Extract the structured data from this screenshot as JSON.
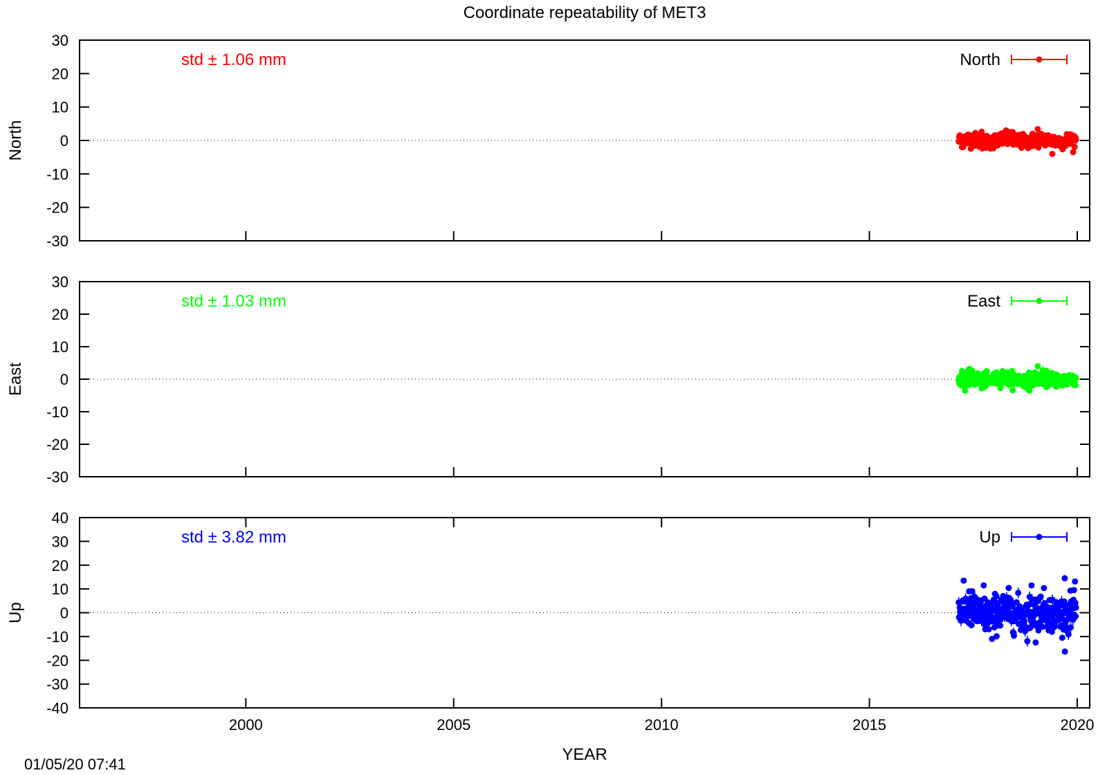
{
  "chart_data": {
    "type": "scatter",
    "title": "Coordinate repeatability of MET3",
    "xlabel": "YEAR",
    "xlim": [
      1996,
      2020.3
    ],
    "xticks": [
      2000,
      2005,
      2010,
      2015,
      2020
    ],
    "timestamp": "01/05/20 07:41",
    "panels": [
      {
        "name": "North",
        "ylabel": "North",
        "color": "#ff0000",
        "ylim": [
          -30,
          30
        ],
        "yticks": [
          -30,
          -20,
          -10,
          0,
          10,
          20,
          30
        ],
        "std_text": "std ± 1.06 mm",
        "legend": "North",
        "series": {
          "x_start": 2017.15,
          "x_end": 2019.97,
          "x_peaks": [
            2017.25,
            2017.7,
            2018.45,
            2019.05,
            2019.4,
            2019.75
          ],
          "y_peaks": [
            -2.0,
            2.6,
            2.5,
            3.4,
            -4.0,
            1.9
          ],
          "y_sd": 1.06
        }
      },
      {
        "name": "East",
        "ylabel": "East",
        "color": "#00ff00",
        "ylim": [
          -30,
          30
        ],
        "yticks": [
          -30,
          -20,
          -10,
          0,
          10,
          20,
          30
        ],
        "std_text": "std ± 1.03 mm",
        "legend": "East",
        "series": {
          "x_start": 2017.15,
          "x_end": 2019.97,
          "x_peaks": [
            2017.3,
            2017.7,
            2018.2,
            2018.85,
            2019.05,
            2019.5
          ],
          "y_peaks": [
            -3.5,
            -2.8,
            2.5,
            -3.5,
            4.0,
            1.5
          ],
          "y_sd": 1.03
        }
      },
      {
        "name": "Up",
        "ylabel": "Up",
        "color": "#0000ff",
        "ylim": [
          -40,
          40
        ],
        "yticks": [
          -40,
          -30,
          -20,
          -10,
          0,
          10,
          20,
          30,
          40
        ],
        "std_text": "std ± 3.82 mm",
        "legend": "Up",
        "series": {
          "x_start": 2017.15,
          "x_end": 2019.97,
          "x_peaks": [
            2017.4,
            2017.75,
            2017.95,
            2018.9,
            2019.0,
            2019.7
          ],
          "y_peaks": [
            9.0,
            11.5,
            -11.0,
            11.5,
            -12.5,
            14.5
          ],
          "y_sd": 3.82
        }
      }
    ]
  }
}
